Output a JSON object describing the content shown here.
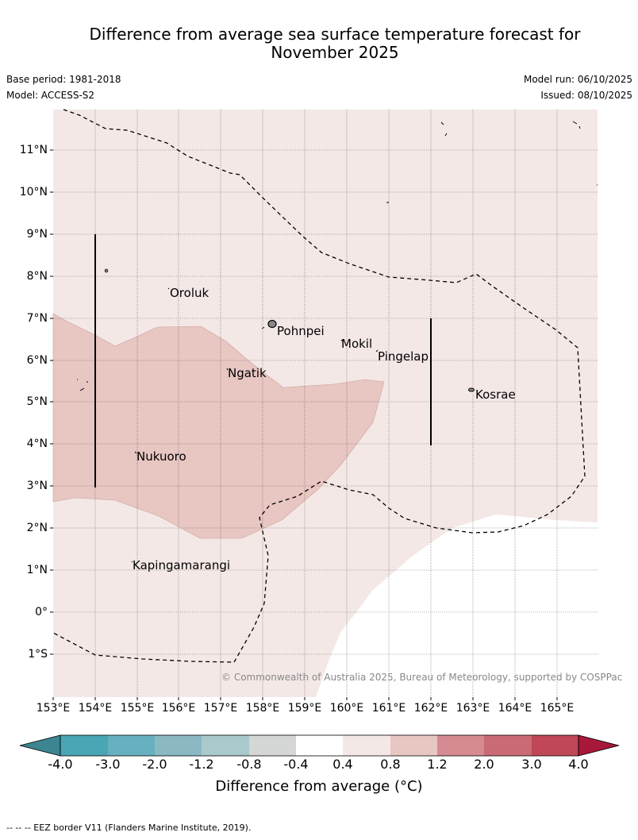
{
  "title": {
    "line1": "Difference from average sea surface temperature forecast for",
    "line2": "November 2025"
  },
  "meta": {
    "base_period": "Base period: 1981-2018",
    "model": "Model: ACCESS-S2",
    "model_run": "Model run: 06/10/2025",
    "issued": "Issued: 08/10/2025"
  },
  "map": {
    "latitude_labels": [
      "11°N",
      "10°N",
      "9°N",
      "8°N",
      "7°N",
      "6°N",
      "5°N",
      "4°N",
      "3°N",
      "2°N",
      "1°N",
      "0°",
      "1°S"
    ],
    "longitude_labels": [
      "153°E",
      "154°E",
      "155°E",
      "156°E",
      "157°E",
      "158°E",
      "159°E",
      "160°E",
      "161°E",
      "162°E",
      "163°E",
      "164°E",
      "165°E"
    ],
    "places": [
      "Oroluk",
      "Pohnpei",
      "Mokil",
      "Pingelap",
      "Ngatik",
      "Kosrae",
      "Nukuoro",
      "Kapingamarangi"
    ],
    "copyright": "© Commonwealth of Australia 2025, Bureau of Meteorology, supported by COSPPac",
    "colors": {
      "band_0_4_to_0_8": "#f4e8e7",
      "band_0_8_to_1_2": "#e8c6c2",
      "no_data": "#ffffff"
    }
  },
  "colorbar": {
    "ticks": [
      "-4.0",
      "-3.0",
      "-2.0",
      "-1.2",
      "-0.8",
      "-0.4",
      "0.4",
      "0.8",
      "1.2",
      "2.0",
      "3.0",
      "4.0"
    ],
    "colors": [
      "#3c8591",
      "#4aa5b5",
      "#67b0bf",
      "#8ab9c3",
      "#a9c9cc",
      "#d4d7d6",
      "#ffffff",
      "#f4e8e7",
      "#e8c6c2",
      "#d68b93",
      "#ca6a74",
      "#c04757",
      "#a8183a"
    ],
    "label": "Difference from average (°C)"
  },
  "footer": "--  --  -- EEZ border V11 (Flanders Marine Institute, 2019)."
}
